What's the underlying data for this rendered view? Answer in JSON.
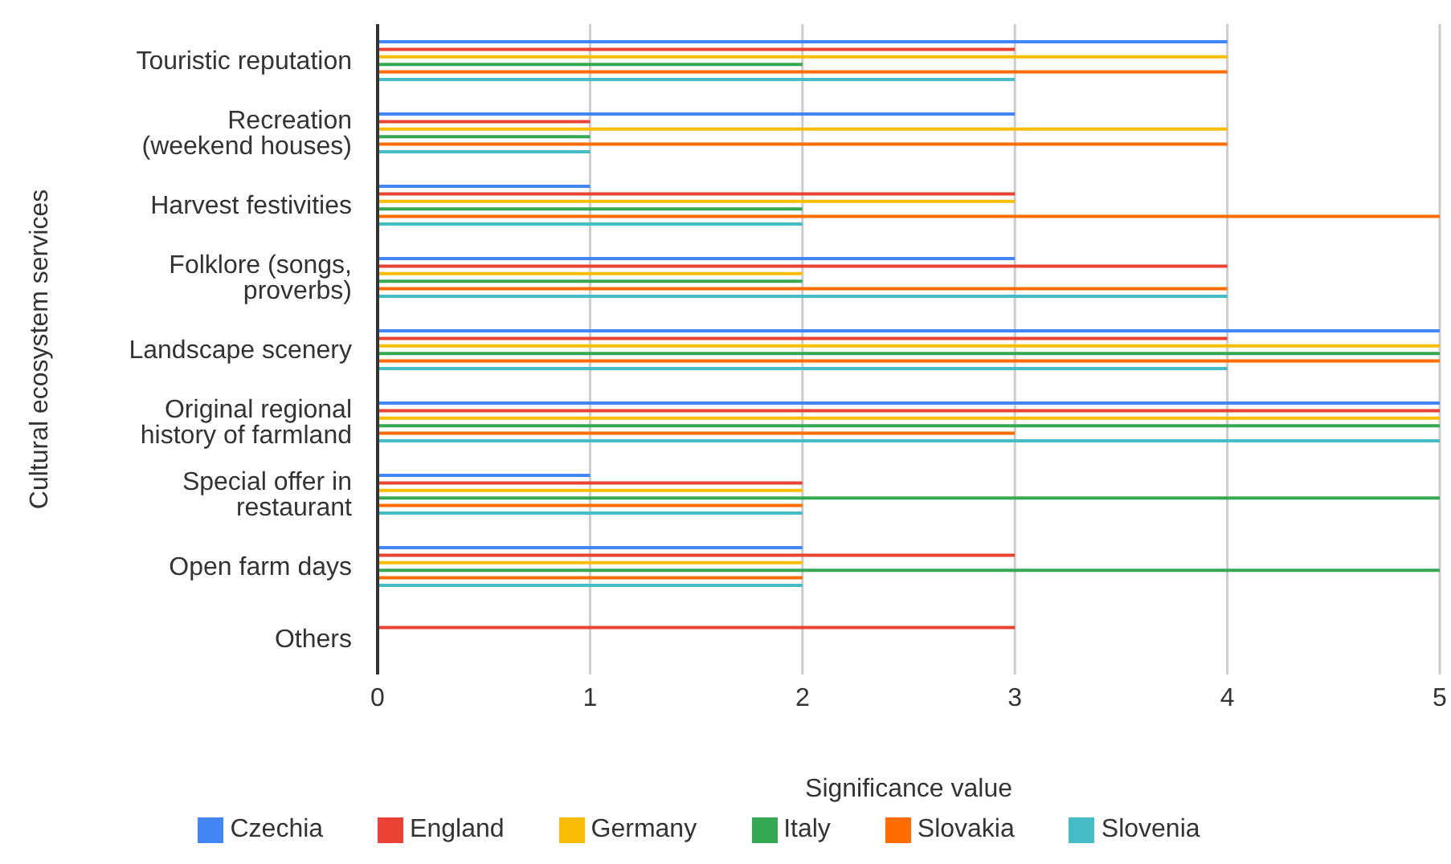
{
  "chart_data": {
    "type": "bar",
    "orientation": "horizontal",
    "xlabel": "Significance value",
    "ylabel": "Cultural ecosystem services",
    "categories": [
      "Touristic reputation",
      "Recreation (weekend houses)",
      "Harvest festivities",
      "Folklore (songs, proverbs)",
      "Landscape scenery",
      "Original regional history of farmland",
      "Special offer in restaurant",
      "Open farm days",
      "Others"
    ],
    "series": [
      {
        "name": "Czechia",
        "color": "#4285f4",
        "values": [
          4,
          3,
          1,
          3,
          5,
          5,
          1,
          2,
          null
        ]
      },
      {
        "name": "England",
        "color": "#ea4335",
        "values": [
          3,
          1,
          3,
          4,
          4,
          5,
          2,
          3,
          3
        ]
      },
      {
        "name": "Germany",
        "color": "#fbbc04",
        "values": [
          4,
          4,
          3,
          2,
          5,
          5,
          2,
          2,
          null
        ]
      },
      {
        "name": "Italy",
        "color": "#34a853",
        "values": [
          2,
          1,
          2,
          2,
          5,
          5,
          5,
          5,
          null
        ]
      },
      {
        "name": "Slovakia",
        "color": "#ff6d01",
        "values": [
          4,
          4,
          5,
          4,
          5,
          3,
          2,
          2,
          null
        ]
      },
      {
        "name": "Slovenia",
        "color": "#46bdc6",
        "values": [
          3,
          1,
          2,
          4,
          4,
          5,
          2,
          2,
          null
        ]
      }
    ],
    "xlim": [
      0,
      5
    ],
    "xticks": [
      0,
      1,
      2,
      3,
      4,
      5
    ],
    "grid": "x",
    "legend": "bottom"
  }
}
